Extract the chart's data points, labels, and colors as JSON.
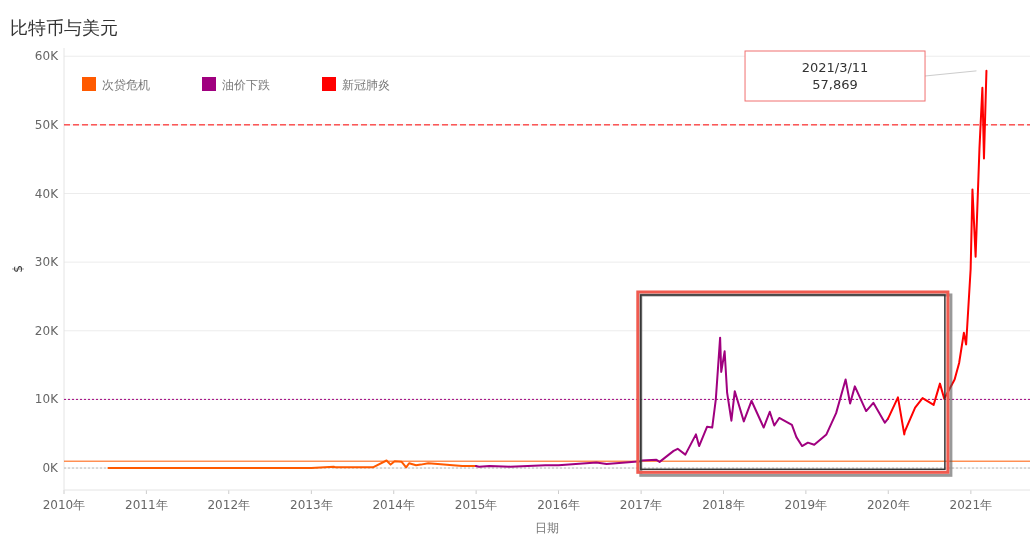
{
  "chart_data": {
    "type": "line",
    "title": "比特币与美元",
    "xlabel": "日期",
    "ylabel": "$",
    "xlim": [
      "2010-01-01",
      "2021-09-20"
    ],
    "xticks": [
      {
        "value": "2010",
        "label": "2010年"
      },
      {
        "value": "2011",
        "label": "2011年"
      },
      {
        "value": "2012",
        "label": "2012年"
      },
      {
        "value": "2013",
        "label": "2013年"
      },
      {
        "value": "2014",
        "label": "2014年"
      },
      {
        "value": "2015",
        "label": "2015年"
      },
      {
        "value": "2016",
        "label": "2016年"
      },
      {
        "value": "2017",
        "label": "2017年"
      },
      {
        "value": "2018",
        "label": "2018年"
      },
      {
        "value": "2019",
        "label": "2019年"
      },
      {
        "value": "2020",
        "label": "2020年"
      },
      {
        "value": "2021",
        "label": "2021年"
      }
    ],
    "ylim": [
      -3200,
      61200
    ],
    "yticks": [
      {
        "value": 0,
        "label": "0K"
      },
      {
        "value": 10000,
        "label": "10K"
      },
      {
        "value": 20000,
        "label": "20K"
      },
      {
        "value": 30000,
        "label": "30K"
      },
      {
        "value": 40000,
        "label": "40K"
      },
      {
        "value": 50000,
        "label": "50K"
      },
      {
        "value": 60000,
        "label": "60K"
      }
    ],
    "grid": "y",
    "legend": "top left",
    "line_style": "solid",
    "marker": "none",
    "series": [
      {
        "name": "次贷危机",
        "color": "#ff5a00",
        "x": [
          "2010-07-17",
          "2011-06-08",
          "2011-12-01",
          "2012-08-01",
          "2013-01-01",
          "2013-04-10",
          "2013-04-16",
          "2013-10-01",
          "2013-11-30",
          "2013-12-18",
          "2014-01-05",
          "2014-02-05",
          "2014-02-25",
          "2014-03-10",
          "2014-04-10",
          "2014-05-01",
          "2014-06-03",
          "2014-07-15",
          "2014-09-20",
          "2014-11-01",
          "2014-12-31"
        ],
        "values": [
          0,
          0,
          0,
          0,
          0,
          200,
          100,
          100,
          1100,
          500,
          1000,
          900,
          100,
          700,
          400,
          500,
          700,
          600,
          400,
          300,
          300
        ]
      },
      {
        "name": "油价下跌",
        "color": "#a0007f",
        "x": [
          "2014-12-31",
          "2015-01-14",
          "2015-03-01",
          "2015-06-01",
          "2015-11-04",
          "2016-01-01",
          "2016-06-17",
          "2016-08-01",
          "2016-12-31",
          "2017-01-04",
          "2017-03-10",
          "2017-03-24",
          "2017-05-25",
          "2017-06-12",
          "2017-07-16",
          "2017-09-01",
          "2017-09-15",
          "2017-10-20",
          "2017-11-12",
          "2017-11-28",
          "2017-12-17",
          "2017-12-22",
          "2018-01-06",
          "2018-01-17",
          "2018-02-05",
          "2018-02-20",
          "2018-04-01",
          "2018-05-05",
          "2018-06-28",
          "2018-07-25",
          "2018-08-14",
          "2018-09-05",
          "2018-10-31",
          "2018-11-20",
          "2018-12-15",
          "2019-01-10",
          "2019-02-07",
          "2019-04-02",
          "2019-05-15",
          "2019-06-26",
          "2019-07-16",
          "2019-08-06",
          "2019-09-25",
          "2019-10-27",
          "2019-12-17",
          "2019-12-31"
        ],
        "values": [
          300,
          200,
          300,
          200,
          400,
          400,
          800,
          600,
          1000,
          1100,
          1200,
          900,
          2500,
          2800,
          1950,
          4900,
          3200,
          6000,
          5900,
          10000,
          19000,
          14000,
          17000,
          11000,
          6900,
          11200,
          6800,
          9800,
          5900,
          8200,
          6200,
          7300,
          6300,
          4500,
          3200,
          3700,
          3400,
          4900,
          8000,
          12900,
          9400,
          11900,
          8300,
          9500,
          6600,
          7200
        ]
      },
      {
        "name": "新冠肺炎",
        "color": "#ff0000",
        "x": [
          "2019-12-31",
          "2020-02-13",
          "2020-03-12",
          "2020-03-14",
          "2020-04-29",
          "2020-06-01",
          "2020-07-20",
          "2020-08-17",
          "2020-09-05",
          "2020-10-21",
          "2020-11-10",
          "2020-12-01",
          "2020-12-11",
          "2020-12-31",
          "2021-01-08",
          "2021-01-22",
          "2021-02-08",
          "2021-02-21",
          "2021-02-28",
          "2021-03-11"
        ],
        "values": [
          7200,
          10300,
          4900,
          5300,
          8800,
          10200,
          9200,
          12300,
          10100,
          12900,
          15300,
          19700,
          18000,
          29000,
          40600,
          30800,
          46500,
          55400,
          45100,
          57869
        ]
      }
    ],
    "ref_lines": [
      {
        "axis": "y",
        "value": 50000,
        "color": "#ff0000",
        "line_style": "dashed"
      },
      {
        "axis": "y",
        "value": 10000,
        "color": "#a0007f",
        "line_style": "dotted"
      },
      {
        "axis": "y",
        "value": 1000,
        "color": "#ff5a00",
        "line_style": "solid"
      },
      {
        "axis": "y",
        "value": 0,
        "color": "#bbbbbb",
        "line_style": "dotted"
      }
    ],
    "annotations": [
      "2021/3/11\n57,869"
    ]
  }
}
